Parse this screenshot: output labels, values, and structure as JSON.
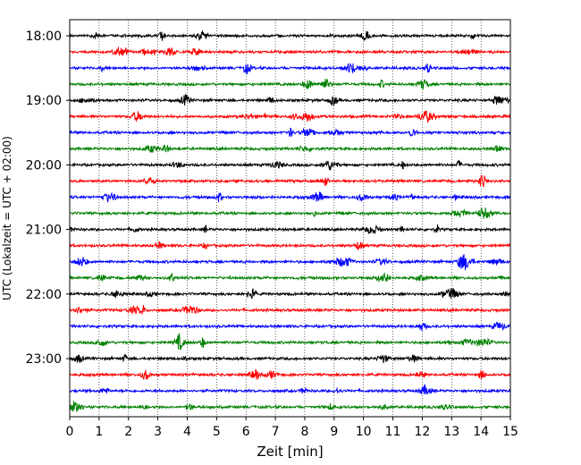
{
  "chart_data": {
    "type": "line",
    "title": "",
    "xlabel": "Zeit  [min]",
    "ylabel": "UTC (Lokalzeit = UTC + 02:00)",
    "xlim": [
      0,
      15
    ],
    "x_ticks": [
      0,
      1,
      2,
      3,
      4,
      5,
      6,
      7,
      8,
      9,
      10,
      11,
      12,
      13,
      14,
      15
    ],
    "y_tick_labels": [
      "18:00",
      "19:00",
      "20:00",
      "21:00",
      "22:00",
      "23:00"
    ],
    "grid": "vertical dotted",
    "trace_colors": [
      "#000000",
      "#ff0000",
      "#0000ff",
      "#008000"
    ],
    "traces": [
      {
        "start": "18:00"
      },
      {
        "start": "18:15"
      },
      {
        "start": "18:30"
      },
      {
        "start": "18:45"
      },
      {
        "start": "19:00"
      },
      {
        "start": "19:15"
      },
      {
        "start": "19:30"
      },
      {
        "start": "19:45"
      },
      {
        "start": "20:00"
      },
      {
        "start": "20:15"
      },
      {
        "start": "20:30"
      },
      {
        "start": "20:45"
      },
      {
        "start": "21:00"
      },
      {
        "start": "21:15"
      },
      {
        "start": "21:30"
      },
      {
        "start": "21:45"
      },
      {
        "start": "22:00"
      },
      {
        "start": "22:15"
      },
      {
        "start": "22:30"
      },
      {
        "start": "22:45"
      },
      {
        "start": "23:00"
      },
      {
        "start": "23:15"
      },
      {
        "start": "23:30"
      },
      {
        "start": "23:45"
      }
    ]
  }
}
